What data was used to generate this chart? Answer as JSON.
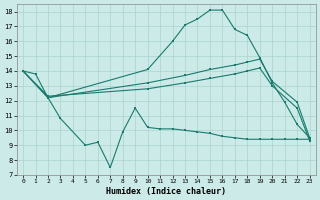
{
  "xlabel": "Humidex (Indice chaleur)",
  "bg_color": "#cceae7",
  "grid_color": "#aad4d0",
  "line_color": "#1a7a6e",
  "xlim": [
    -0.5,
    23.5
  ],
  "ylim": [
    7,
    18.5
  ],
  "xticks": [
    0,
    1,
    2,
    3,
    4,
    5,
    6,
    7,
    8,
    9,
    10,
    11,
    12,
    13,
    14,
    15,
    16,
    17,
    18,
    19,
    20,
    21,
    22,
    23
  ],
  "yticks": [
    7,
    8,
    9,
    10,
    11,
    12,
    13,
    14,
    15,
    16,
    17,
    18
  ],
  "line1_x": [
    0,
    1,
    2,
    10,
    12,
    13,
    14,
    15,
    16,
    17,
    18,
    19,
    20,
    21,
    22,
    23
  ],
  "line1_y": [
    14.0,
    13.8,
    12.2,
    14.1,
    16.0,
    17.1,
    17.5,
    18.1,
    18.1,
    16.8,
    16.4,
    14.9,
    13.2,
    11.9,
    10.4,
    9.5
  ],
  "line2_x": [
    0,
    2,
    3,
    5,
    6,
    7,
    8,
    9,
    10,
    11,
    12,
    13,
    14,
    15,
    16,
    17,
    18,
    19,
    20,
    21,
    22,
    23
  ],
  "line2_y": [
    14.0,
    12.2,
    10.8,
    9.0,
    9.2,
    7.5,
    9.9,
    11.5,
    10.2,
    10.1,
    10.1,
    10.0,
    9.9,
    9.8,
    9.6,
    9.5,
    9.4,
    9.4,
    9.4,
    9.4,
    9.4,
    9.4
  ],
  "line3_x": [
    0,
    2,
    10,
    13,
    15,
    17,
    18,
    19,
    20,
    22,
    23
  ],
  "line3_y": [
    14.0,
    12.2,
    13.2,
    13.7,
    14.1,
    14.4,
    14.6,
    14.8,
    13.3,
    11.9,
    9.5
  ],
  "line4_x": [
    0,
    2,
    10,
    13,
    15,
    17,
    18,
    19,
    20,
    22,
    23
  ],
  "line4_y": [
    14.0,
    12.3,
    12.8,
    13.2,
    13.5,
    13.8,
    14.0,
    14.2,
    13.0,
    11.5,
    9.3
  ]
}
